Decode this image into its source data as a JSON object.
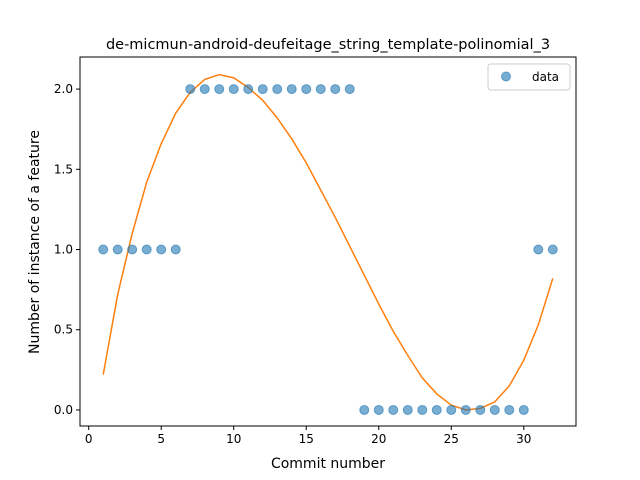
{
  "chart_data": {
    "type": "scatter",
    "title": "de-micmun-android-deufeitage_string_template-polinomial_3",
    "xlabel": "Commit number",
    "ylabel": "Number of instance of a feature",
    "xlim": [
      -0.6,
      33.6
    ],
    "ylim": [
      -0.1,
      2.2
    ],
    "xticks": [
      0,
      5,
      10,
      15,
      20,
      25,
      30
    ],
    "xtick_labels": [
      "0",
      "5",
      "10",
      "15",
      "20",
      "25",
      "30"
    ],
    "yticks": [
      0.0,
      0.5,
      1.0,
      1.5,
      2.0
    ],
    "ytick_labels": [
      "0.0",
      "0.5",
      "1.0",
      "1.5",
      "2.0"
    ],
    "grid": false,
    "legend": {
      "position": "top-right",
      "entries": [
        "data"
      ]
    },
    "series": [
      {
        "name": "data",
        "kind": "scatter",
        "color": "#1f77b4",
        "x": [
          1,
          2,
          3,
          4,
          5,
          6,
          7,
          8,
          9,
          10,
          11,
          12,
          13,
          14,
          15,
          16,
          17,
          18,
          19,
          20,
          21,
          22,
          23,
          24,
          25,
          26,
          27,
          28,
          29,
          30,
          31,
          32
        ],
        "y": [
          1,
          1,
          1,
          1,
          1,
          1,
          2,
          2,
          2,
          2,
          2,
          2,
          2,
          2,
          2,
          2,
          2,
          2,
          0,
          0,
          0,
          0,
          0,
          0,
          0,
          0,
          0,
          0,
          0,
          0,
          1,
          1
        ]
      },
      {
        "kind": "line",
        "color": "#ff7f0e",
        "x": [
          1,
          2,
          3,
          4,
          5,
          6,
          7,
          8,
          9,
          10,
          11,
          12,
          13,
          14,
          15,
          16,
          17,
          18,
          19,
          20,
          21,
          22,
          23,
          24,
          25,
          26,
          27,
          28,
          29,
          30,
          31,
          32
        ],
        "y": [
          0.22,
          0.72,
          1.1,
          1.42,
          1.66,
          1.85,
          1.98,
          2.06,
          2.09,
          2.07,
          2.01,
          1.93,
          1.82,
          1.69,
          1.54,
          1.37,
          1.2,
          1.02,
          0.84,
          0.66,
          0.49,
          0.34,
          0.2,
          0.1,
          0.03,
          0.0,
          0.01,
          0.05,
          0.15,
          0.31,
          0.53,
          0.82
        ]
      }
    ]
  }
}
